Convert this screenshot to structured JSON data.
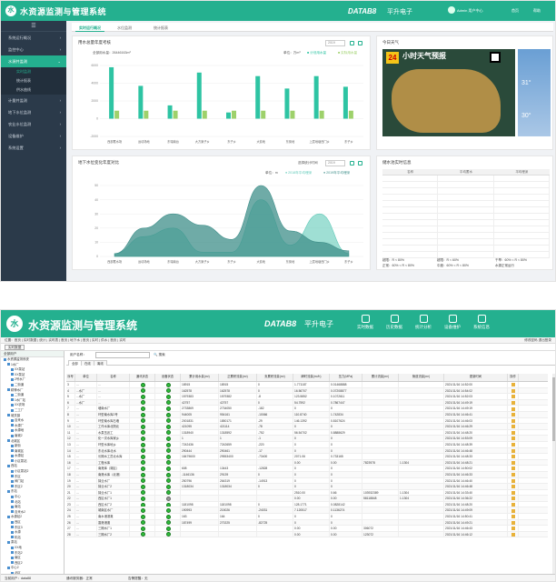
{
  "shot1": {
    "app_title": "水资源监测与管理系统",
    "brand": "DATAB8",
    "brand_cn": "平升电子",
    "user": "Admin 用户中心",
    "btn_home": "首页",
    "btn_help": "帮助",
    "sidebar": {
      "items": [
        {
          "label": "系统运行概况"
        },
        {
          "label": "监控中心"
        },
        {
          "label": "水源井监测"
        },
        {
          "label": "计量井监测"
        },
        {
          "label": "地下水位监测"
        },
        {
          "label": "农业水位监测"
        },
        {
          "label": "设备维护"
        },
        {
          "label": "系统设置"
        }
      ],
      "sub_items": [
        {
          "label": "实时监测"
        },
        {
          "label": "统计报表"
        },
        {
          "label": "供水曲线"
        }
      ]
    },
    "tabs": [
      {
        "label": "实时运行概况"
      },
      {
        "label": "水位监测"
      },
      {
        "label": "统计报表"
      }
    ],
    "bar_panel": {
      "title": "用水总量年度考核",
      "summary": "全部用水量：26446163m³",
      "unit": "单位：万m³",
      "legend_a": "计划用水量",
      "legend_b": "实际用水量",
      "select": "2019"
    },
    "weather_panel": {
      "title": "今日天气",
      "banner": "小时天气预报",
      "date": "24",
      "temp_a": "31°",
      "temp_b": "30°"
    },
    "area_panel": {
      "title": "地下水位变化年度对比",
      "select_label": "选择统计时间",
      "select": "2019",
      "unit": "单位：m",
      "legend_a": "2018年平均埋深",
      "legend_b": "2019年平均埋深"
    },
    "table_panel": {
      "title": "储水池实时信息",
      "headers": [
        "名称",
        "平均蓄水",
        "平均埋深"
      ],
      "foot": [
        "超限：R < 80%",
        "超限：R < 60%",
        "干旱：60% < R < 80%",
        "正常：60% < R < 80%",
        "中度：60% < R < 80%",
        "水源正常运行"
      ]
    }
  },
  "bar_chart": {
    "type": "bar",
    "categories": [
      "西部蓄水场",
      "运动场地",
      "东瑞南台",
      "大方案子乡",
      "东子乡",
      "大前地",
      "东街地",
      "上层地塘西门乡",
      "东子乡"
    ],
    "series": [
      {
        "name": "计划用水量",
        "values": [
          5800,
          3700,
          1500,
          5200,
          700,
          4800,
          3400,
          4800,
          3600
        ]
      },
      {
        "name": "实际用水量",
        "values": [
          900,
          900,
          900,
          900,
          900,
          900,
          900,
          900,
          900
        ]
      }
    ],
    "ylim": [
      -2000,
      6000
    ],
    "yticks": [
      "6000",
      "4000",
      "2000",
      "0",
      "-2000"
    ]
  },
  "area_chart": {
    "type": "area",
    "categories": [
      "西部蓄水场",
      "运动场地",
      "东瑞南台",
      "大方案子乡",
      "东子乡",
      "大前地",
      "东街地",
      "上层地塘西门乡",
      "东子乡"
    ],
    "series": [
      {
        "name": "2018年平均埋深",
        "values": [
          2,
          14,
          20,
          3,
          3,
          40,
          8,
          30,
          2
        ]
      },
      {
        "name": "2019年平均埋深",
        "values": [
          2,
          20,
          30,
          22,
          12,
          50,
          18,
          10,
          4
        ]
      }
    ],
    "ylim": [
      0,
      50
    ],
    "yticks": [
      "50",
      "40",
      "30",
      "20",
      "10",
      "0"
    ]
  },
  "shot2": {
    "app_title": "水资源监测与管理系统",
    "brand": "DATAB8",
    "brand_cn": "平升电子",
    "nav": [
      {
        "label": "实时数据"
      },
      {
        "label": "历史数据"
      },
      {
        "label": "统计分析"
      },
      {
        "label": "设备维护"
      },
      {
        "label": "系统信息"
      }
    ],
    "crumb": "位置：首页 | 实时数据 | 统计 | 实时表 | 首页 | 地下水 | 首页 | 实时 | 供水 | 首页 | 实时 ",
    "crumb_right": "修改密码  退出登录",
    "btn_refresh": "实时数据",
    "tree_header": "全部用户",
    "tree": [
      "水资源监测系统",
      "1水厂",
      "XX泵站",
      "XX泵站",
      "2号水厂",
      "二街道",
      "精神水厂",
      "二街道",
      "1水厂站",
      "XX农场",
      "二工厂",
      "城关镇",
      "自来水",
      "水源厂",
      "水源地",
      "南城2",
      "北城区",
      "新街",
      "南城区",
      "水源站",
      "小区泵站",
      "西站",
      "小区泵站2",
      "东区",
      "阀门站",
      "东区2",
      "东站",
      "中心",
      "北站",
      "南站",
      "自来水2",
      "水源站2",
      "西区",
      "东区3",
      "水源",
      "机站",
      "泵站",
      "XX地",
      "东站2",
      "南区",
      "西区2",
      "中心2",
      "北区",
      "站点"
    ],
    "search_label": "用户名称：",
    "search_btn": "搜索",
    "subtabs": [
      "全部",
      "在线",
      "离线"
    ],
    "columns": [
      "序号",
      "单位",
      "名称",
      "通讯状态",
      "设备状态",
      "累计用水量(m³)",
      "正累积流量(m³)",
      "负累积流量(m³)",
      "瞬时流量(m³/h)",
      "压力(MPa)",
      "累计流量(m³)",
      "管道流量(m³)",
      "更新时间",
      "操作"
    ],
    "rows": [
      [
        "3",
        "...",
        "...",
        "g",
        "g",
        "18915",
        "18915",
        "0",
        "1.771187",
        "0.01468888",
        "",
        "",
        "2021/11/16 14:52:00",
        ""
      ],
      [
        "4",
        "...水厂",
        "...",
        "g",
        "g",
        "162578",
        "162578",
        "0",
        "16.56707",
        "0.07208877",
        "",
        "",
        "2021/11/16 14:54:02",
        ""
      ],
      [
        "5",
        "...水厂",
        "...",
        "g",
        "g",
        "1579383",
        "1579382",
        "-8",
        "123.5852",
        "0.1072611",
        "",
        "",
        "2021/11/16 14:52:03",
        ""
      ],
      [
        "6",
        "...水厂",
        "...",
        "g",
        "g",
        "42757",
        "42757",
        "0",
        "54.7592",
        "0.7867447",
        "",
        "",
        "2021/11/16 14:49:19",
        ""
      ],
      [
        "7",
        "...",
        "墙南水厂",
        "g",
        "g",
        "2733869",
        "2734050",
        "-182",
        "0",
        "0",
        "",
        "",
        "2021/11/16 14:49:19",
        ""
      ],
      [
        "8",
        "...",
        "环型南水库2号",
        "g",
        "g",
        "944005",
        "954161",
        "-10066",
        "110.8740",
        "1.742834",
        "",
        "",
        "2021/11/16 14:46:41",
        ""
      ],
      [
        "9",
        "...",
        "环型南水库石墙",
        "g",
        "g",
        "2001831",
        "1850171",
        "-29",
        "146.1392",
        "0.8107624",
        "",
        "",
        "2021/11/16 14:46:03",
        ""
      ],
      [
        "10",
        "...",
        "工作水库北院北",
        "g",
        "g",
        "421095",
        "421114",
        "-78",
        "0",
        "0",
        "",
        "",
        "2021/11/16 14:46:29",
        ""
      ],
      [
        "11",
        "...",
        "水泵压滤工",
        "g",
        "g",
        "1318940",
        "1318592",
        "-752",
        "56.54702",
        "0.8888629",
        "",
        "",
        "2021/11/16 14:48:20",
        ""
      ],
      [
        "12",
        "...",
        "化一次水库家乡",
        "g",
        "g",
        "1",
        "1",
        "-1",
        "0",
        "0",
        "",
        "",
        "2021/11/16 14:53:09",
        ""
      ],
      [
        "13",
        "...",
        "环型水库地乡",
        "g",
        "g",
        "7242436",
        "7242659",
        "-220",
        "0",
        "0",
        "",
        "",
        "2021/11/16 14:48:39",
        ""
      ],
      [
        "14",
        "...",
        "东北水库北水",
        "g",
        "g",
        "290444",
        "290461",
        "-17",
        "0",
        "0",
        "",
        "",
        "2021/11/16 14:46:48",
        ""
      ],
      [
        "15",
        "...",
        "长期水工员北水库",
        "g",
        "g",
        "18479600",
        "29553400",
        "-73400",
        "2071.06",
        "0.733165",
        "",
        "",
        "2021/11/16 14:48:33",
        ""
      ],
      [
        "16",
        "...",
        "工程水库",
        "g",
        "g",
        "",
        "",
        "",
        "0.00",
        "0.00",
        "7823978",
        "1.1304",
        "2021/11/16 14:48:21",
        ""
      ],
      [
        "17",
        "...",
        "南港库（湖区）",
        "g",
        "g",
        "608",
        "13443",
        "-12828",
        "0",
        "0",
        "",
        "",
        "2021/11/16 14:50:02",
        ""
      ],
      [
        "18",
        "...",
        "南港水库（北港）",
        "g",
        "g",
        "-1146136",
        "29139",
        "0",
        "0",
        "0",
        "",
        "",
        "2021/11/16 14:46:33",
        ""
      ],
      [
        "19",
        "...",
        "锦业水厂",
        "g",
        "g",
        "250796",
        "264319",
        "-14913",
        "0",
        "0",
        "",
        "",
        "2021/11/16 14:46:40",
        ""
      ],
      [
        "20",
        "...",
        "锦业水厂2",
        "g",
        "g",
        "1318034",
        "1318034",
        "0",
        "0",
        "0",
        "",
        "",
        "2021/11/16 14:46:48",
        ""
      ],
      [
        "21",
        "...",
        "锦业水厂1",
        "g",
        "g",
        "",
        "",
        "",
        "2510.00",
        "0.66",
        "103932389",
        "1.1304",
        "2021/11/16 14:33:40",
        ""
      ],
      [
        "22",
        "...",
        "西区水厂1",
        "g",
        "x",
        "",
        "",
        "",
        "0.00",
        "0.00",
        "58118848",
        "1.1304",
        "2021/11/16 14:36:22",
        ""
      ],
      [
        "23",
        "...",
        "西区水厂2",
        "g",
        "g",
        "1181098",
        "1181098",
        "0",
        "128.1771",
        "0.0828142",
        "",
        "",
        "2021/11/16 14:48:20",
        ""
      ],
      [
        "24",
        "...",
        "城南区水厂",
        "g",
        "g",
        "190993",
        "215026",
        "-24031",
        "7.120517",
        "0.1136274",
        "",
        "",
        "2021/11/16 14:49:09",
        ""
      ],
      [
        "25",
        "...",
        "南水港灌溉",
        "g",
        "g",
        "163",
        "164",
        "0",
        "0",
        "0",
        "",
        "",
        "2021/11/16 14:50:41",
        ""
      ],
      [
        "26",
        "...",
        "香港港澳",
        "g",
        "g",
        "187499",
        "270225",
        "-82725",
        "0",
        "0",
        "",
        "",
        "2021/11/16 14:49:21",
        ""
      ],
      [
        "27",
        "...",
        "三期水厂1",
        "g",
        "g",
        "",
        "",
        "",
        "0.00",
        "0.00",
        "306072",
        "",
        "2021/11/16 14:46:43",
        ""
      ],
      [
        "28",
        "...",
        "三期水厂2",
        "g",
        "g",
        "",
        "",
        "",
        "0.00",
        "0.00",
        "123072",
        "",
        "2021/11/16 14:46:12",
        ""
      ]
    ],
    "status": {
      "user": "当前用户：data88",
      "online": "通讯服务器：正常",
      "alarm": "告警提醒：无"
    }
  },
  "colors": {
    "accent": "#24b08f",
    "dark_sidebar": "#2b3a4a",
    "plan_bar": "#2ec4a3",
    "actual_bar": "#9ed16b",
    "area_2018": "#5fc9b8",
    "area_2019": "#3f8f8a"
  }
}
